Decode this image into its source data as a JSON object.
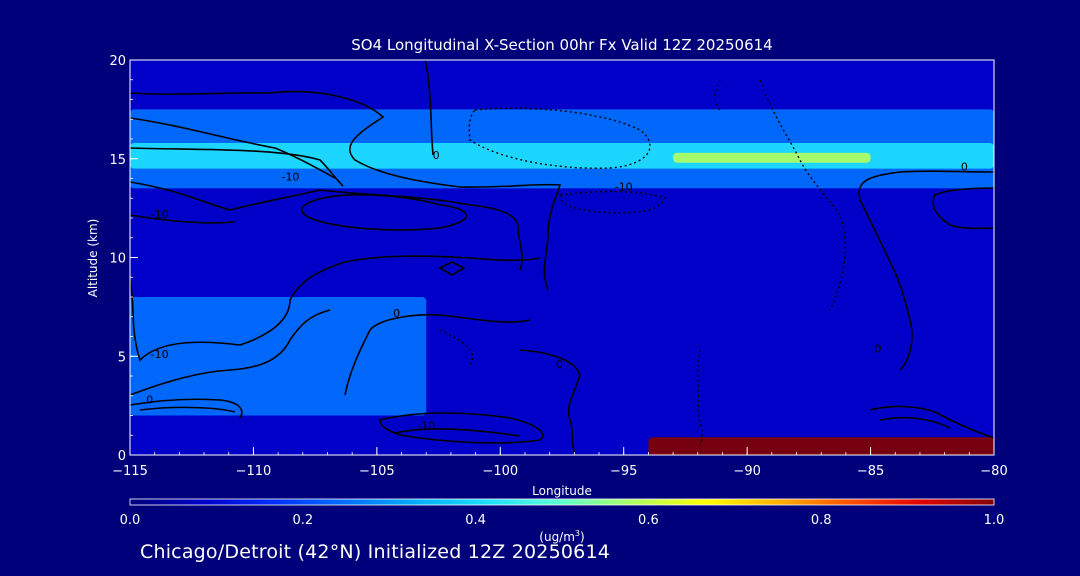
{
  "chart_data": {
    "type": "heatmap",
    "title": "SO4 Longitudinal X-Section 00hr  Fx Valid 12Z 20250614",
    "xlabel": "Longitude",
    "ylabel": "Altitude (km)",
    "xlim": [
      -115,
      -80
    ],
    "ylim": [
      0,
      20
    ],
    "x_ticks": [
      -115,
      -110,
      -105,
      -100,
      -95,
      -90,
      -85,
      -80
    ],
    "x_tick_labels": [
      "−115",
      "−110",
      "−105",
      "−100",
      "−95",
      "−90",
      "−85",
      "−80"
    ],
    "y_ticks": [
      0,
      5,
      10,
      15,
      20
    ],
    "y_tick_labels": [
      "0",
      "5",
      "10",
      "15",
      "20"
    ],
    "colorbar": {
      "min": 0.0,
      "max": 1.0,
      "tick_values": [
        0.0,
        0.2,
        0.4,
        0.6,
        0.8,
        1.0
      ],
      "tick_labels": [
        "0.0",
        "0.2",
        "0.4",
        "0.6",
        "0.8",
        "1.0"
      ],
      "units_label": "(ug/m",
      "units_superscript": "3",
      "units_close": ")",
      "colors": [
        "#00007a",
        "#0000c8",
        "#0030ff",
        "#0070ff",
        "#00b0ff",
        "#20e0ff",
        "#60ffd0",
        "#b0ff60",
        "#ffff00",
        "#ffb000",
        "#ff5000",
        "#e00000",
        "#800000"
      ]
    },
    "concentration_layers": [
      {
        "desc": "background",
        "value": 0.12,
        "x": [
          -115,
          -80
        ],
        "y": [
          0.0,
          20
        ]
      },
      {
        "desc": "upper band",
        "value": 0.28,
        "x": [
          -115,
          -80
        ],
        "y": [
          13.5,
          17.5
        ]
      },
      {
        "desc": "upper band core",
        "value": 0.42,
        "x": [
          -115,
          -80
        ],
        "y": [
          14.5,
          15.8
        ]
      },
      {
        "desc": "band core east",
        "value": 0.55,
        "x": [
          -93,
          -85
        ],
        "y": [
          14.8,
          15.3
        ]
      },
      {
        "desc": "lower plume west",
        "value": 0.22,
        "x": [
          -115,
          -103
        ],
        "y": [
          2.0,
          8.0
        ]
      },
      {
        "desc": "surface plume east",
        "value": 1.0,
        "x": [
          -94,
          -80
        ],
        "y": [
          0.0,
          0.9
        ]
      }
    ],
    "contour_labels": [
      {
        "text": "0",
        "x": -102.6,
        "y": 15.0
      },
      {
        "text": "-10",
        "x": -108.5,
        "y": 13.9
      },
      {
        "text": "-10",
        "x": -113.8,
        "y": 12.0
      },
      {
        "text": "-10",
        "x": -95.0,
        "y": 13.4
      },
      {
        "text": "0",
        "x": -104.2,
        "y": 7.0
      },
      {
        "text": "-10",
        "x": -113.8,
        "y": 4.9
      },
      {
        "text": "0",
        "x": -114.2,
        "y": 2.6
      },
      {
        "text": "0",
        "x": -97.6,
        "y": 4.4
      },
      {
        "text": "0",
        "x": -81.2,
        "y": 14.4
      },
      {
        "text": "0",
        "x": -84.7,
        "y": 5.2
      },
      {
        "text": "-10",
        "x": -103.0,
        "y": 1.3
      }
    ]
  },
  "footer": {
    "text": "Chicago/Detroit (42°N) Initialized 12Z 20250614"
  }
}
